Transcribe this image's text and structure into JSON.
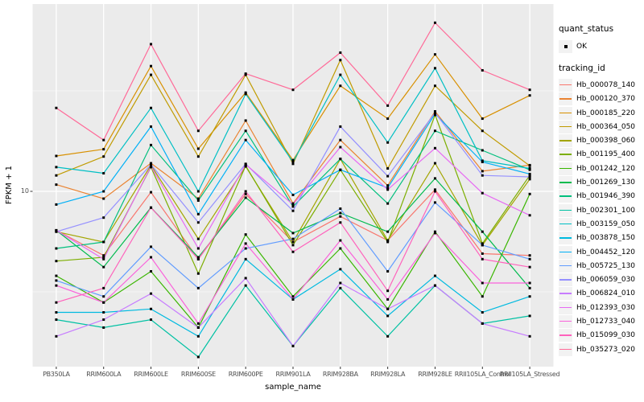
{
  "figure": {
    "background": "#FFFFFF",
    "panel_background": "#EBEBEB",
    "grid_color": "#FFFFFF",
    "tick_mark_color": "#333333",
    "tick_text_color": "#4D4D4D",
    "axis_title_color": "#000000",
    "point_color": "#000000"
  },
  "chart_data": {
    "type": "line",
    "title": "",
    "xlabel": "sample_name",
    "ylabel": "FPKM + 1",
    "y_scale": "log10",
    "ylim": [
      1.34,
      85
    ],
    "y_ticks": [
      10
    ],
    "y_tick_labels": [
      "10"
    ],
    "y_minor_ticks": [
      3.162,
      31.623
    ],
    "grid": true,
    "legend_position": "right",
    "point_shape": "square",
    "legend": {
      "quant_title": "quant_status",
      "quant_item_label": "OK",
      "tracking_title": "tracking_id"
    },
    "categories": [
      "PB350LA",
      "RRIM600LA",
      "RRIM600LE",
      "RRIM600SE",
      "RRIM600PE",
      "RRIM901LA",
      "RRIM928BA",
      "RRIM928LA",
      "RRIM928LE",
      "RRII105LA_Control",
      "RRII105LA_Stressed"
    ],
    "series": [
      {
        "name": "Hb_000078_140",
        "color": "#F8766D",
        "values": [
          6.4,
          4.8,
          9.9,
          4.6,
          9.7,
          5.6,
          7.5,
          5.7,
          10.2,
          4.9,
          4.8
        ]
      },
      {
        "name": "Hb_000120_370",
        "color": "#EA8331",
        "values": [
          10.8,
          9.2,
          13.8,
          9.2,
          22.5,
          8.7,
          18.0,
          10.7,
          25.0,
          12.6,
          13.5
        ]
      },
      {
        "name": "Hb_000185_220",
        "color": "#D89000",
        "values": [
          15.0,
          16.2,
          42.0,
          16.3,
          31.0,
          14.3,
          33.5,
          23.0,
          48.0,
          23.0,
          30.0
        ]
      },
      {
        "name": "Hb_000364_050",
        "color": "#C09B00",
        "values": [
          12.0,
          14.9,
          38.0,
          14.9,
          38.0,
          13.7,
          45.0,
          13.0,
          33.5,
          20.0,
          13.4
        ]
      },
      {
        "name": "Hb_000398_060",
        "color": "#A3A500",
        "values": [
          6.3,
          5.6,
          13.5,
          5.8,
          13.3,
          5.6,
          14.5,
          5.7,
          13.8,
          5.4,
          11.5
        ]
      },
      {
        "name": "Hb_001195_400",
        "color": "#7CAE00",
        "values": [
          4.5,
          4.7,
          13.2,
          3.9,
          13.4,
          5.4,
          12.8,
          5.6,
          24.0,
          5.5,
          12.0
        ]
      },
      {
        "name": "Hb_001242_120",
        "color": "#39B600",
        "values": [
          3.8,
          2.8,
          4.0,
          2.1,
          6.1,
          3.0,
          5.2,
          2.6,
          6.3,
          3.0,
          9.7
        ]
      },
      {
        "name": "Hb_001269_130",
        "color": "#00BB4E",
        "values": [
          6.4,
          4.2,
          8.3,
          4.7,
          9.3,
          6.2,
          7.8,
          6.3,
          11.6,
          6.3,
          3.3
        ]
      },
      {
        "name": "Hb_001946_390",
        "color": "#00BF7D",
        "values": [
          5.2,
          5.6,
          17.0,
          9.0,
          20.0,
          8.4,
          14.5,
          8.7,
          20.0,
          16.0,
          12.8
        ]
      },
      {
        "name": "Hb_002301_100",
        "color": "#00C1A3",
        "values": [
          2.3,
          2.1,
          2.3,
          1.5,
          3.4,
          1.7,
          3.3,
          1.9,
          3.4,
          2.2,
          2.4
        ]
      },
      {
        "name": "Hb_003159_050",
        "color": "#00BFC4",
        "values": [
          13.2,
          12.3,
          26.0,
          10.0,
          30.5,
          14.0,
          38.0,
          17.5,
          41.0,
          14.2,
          13.0
        ]
      },
      {
        "name": "Hb_003878_150",
        "color": "#00BAE0",
        "values": [
          2.5,
          2.5,
          2.6,
          1.9,
          4.6,
          2.9,
          4.1,
          2.4,
          3.8,
          2.5,
          3.0
        ]
      },
      {
        "name": "Hb_004452_120",
        "color": "#00B0F6",
        "values": [
          8.6,
          10.0,
          21.0,
          7.7,
          18.0,
          9.6,
          12.8,
          10.4,
          24.3,
          14.0,
          12.2
        ]
      },
      {
        "name": "Hb_005725_130",
        "color": "#619CFF",
        "values": [
          3.6,
          3.0,
          5.3,
          3.3,
          5.2,
          5.8,
          8.2,
          4.0,
          8.8,
          5.4,
          4.6
        ]
      },
      {
        "name": "Hb_006059_030",
        "color": "#9590FF",
        "values": [
          6.3,
          7.4,
          13.6,
          7.0,
          13.7,
          8.0,
          21.0,
          11.9,
          24.6,
          12.0,
          11.8
        ]
      },
      {
        "name": "Hb_006824_010",
        "color": "#C77CFF",
        "values": [
          1.9,
          2.3,
          3.1,
          2.1,
          3.7,
          1.7,
          3.5,
          2.6,
          3.4,
          2.2,
          1.9
        ]
      },
      {
        "name": "Hb_012393_030",
        "color": "#E76BF3",
        "values": [
          6.4,
          4.6,
          13.3,
          5.2,
          13.6,
          8.6,
          16.6,
          10.2,
          16.4,
          9.8,
          7.6
        ]
      },
      {
        "name": "Hb_012733_040",
        "color": "#FA62DB",
        "values": [
          3.4,
          2.8,
          4.7,
          2.2,
          5.5,
          2.9,
          5.7,
          2.9,
          6.2,
          3.5,
          3.5
        ]
      },
      {
        "name": "Hb_015099_030",
        "color": "#FF62BC",
        "values": [
          2.8,
          3.3,
          8.3,
          4.6,
          10.0,
          5.0,
          7.0,
          3.2,
          10.0,
          4.6,
          4.2
        ]
      },
      {
        "name": "Hb_035273_020",
        "color": "#FF6A98",
        "values": [
          26.0,
          18.0,
          54.0,
          20.0,
          38.5,
          32.0,
          49.0,
          26.7,
          69.0,
          40.0,
          32.0
        ]
      }
    ]
  }
}
